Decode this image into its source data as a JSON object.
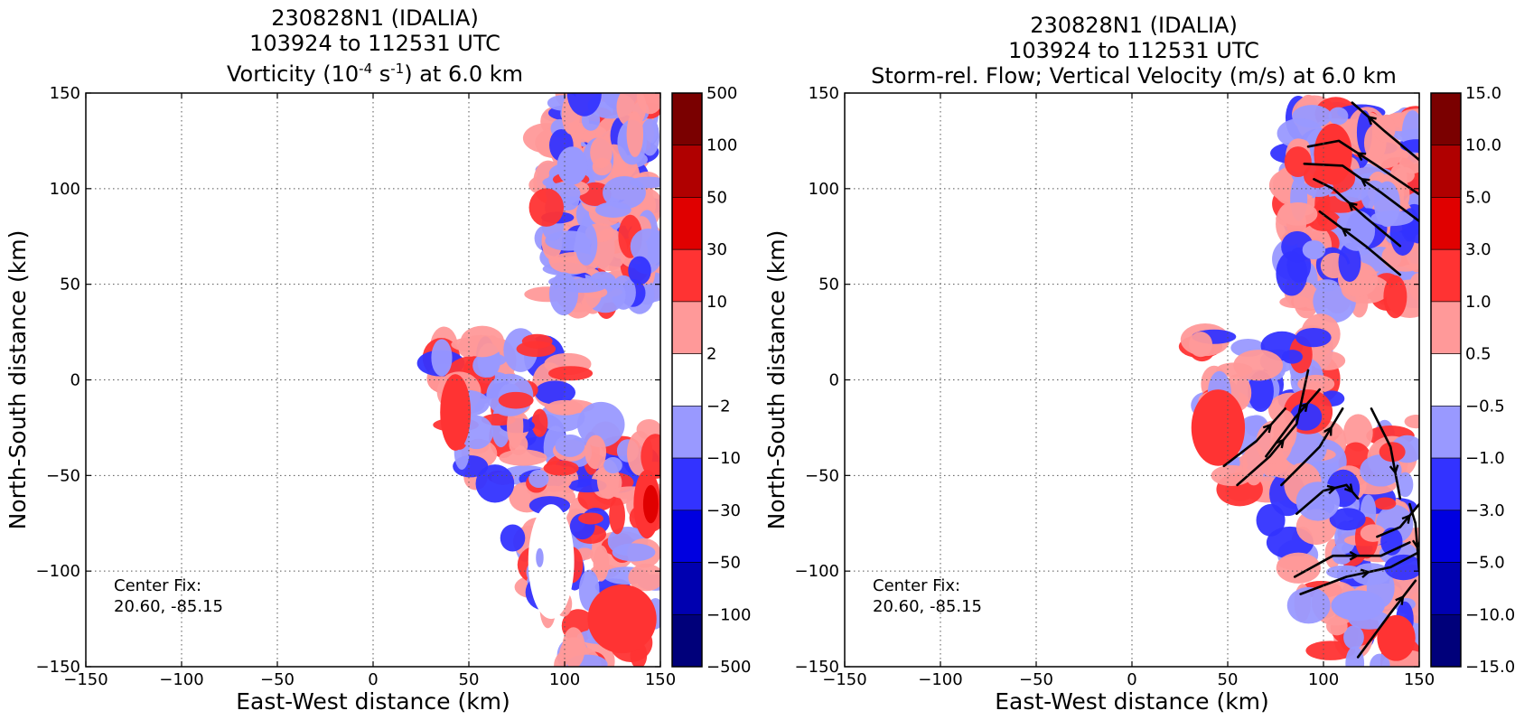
{
  "chart_data": [
    {
      "type": "heatmap",
      "title_lines": [
        "230828N1 (IDALIA)",
        "103924 to 112531 UTC"
      ],
      "title_quantity": {
        "text": "Vorticity (10",
        "sup1": "-4",
        "mid": " s",
        "sup2": "-1",
        "tail": ") at 6.0 km"
      },
      "xlabel": "East-West distance (km)",
      "ylabel": "North-South distance (km)",
      "xlim": [
        -150,
        150
      ],
      "ylim": [
        -150,
        150
      ],
      "xticks": [
        -150,
        -100,
        -50,
        0,
        50,
        100,
        150
      ],
      "yticks": [
        -150,
        -100,
        -50,
        0,
        50,
        100,
        150
      ],
      "xtick_labels": [
        "−150",
        "−100",
        "−50",
        "0",
        "50",
        "100",
        "150"
      ],
      "ytick_labels": [
        "−150",
        "−100",
        "−50",
        "0",
        "50",
        "100",
        "150"
      ],
      "grid": true,
      "colorbar": {
        "levels": [
          "500",
          "100",
          "50",
          "30",
          "10",
          "2",
          "−2",
          "−10",
          "−30",
          "−50",
          "−100",
          "−500"
        ],
        "colors": [
          "#7a0000",
          "#b00000",
          "#e00000",
          "#ff3333",
          "#ff9999",
          "#ffffff",
          "#9999ff",
          "#3333ff",
          "#0000e0",
          "#0000b0",
          "#00007a"
        ]
      },
      "center_fix": {
        "label": "Center Fix:",
        "coords": "20.60, -85.15"
      },
      "field_regions": [
        {
          "sign": "mixed",
          "x": [
            90,
            145
          ],
          "y": [
            43,
            150
          ],
          "note": "northeast echo"
        },
        {
          "sign": "mixed",
          "x": [
            35,
            150
          ],
          "y": [
            -150,
            22
          ],
          "note": "southeast echo"
        }
      ],
      "features": [
        {
          "value": 30,
          "x": 43,
          "y": -17,
          "rx": 5,
          "ry": 13
        },
        {
          "value": 10,
          "x": 43,
          "y": -17,
          "rx": 8,
          "ry": 20
        },
        {
          "value": 10,
          "x": 143,
          "y": -65,
          "rx": 7,
          "ry": 18
        },
        {
          "value": 30,
          "x": 145,
          "y": -65,
          "rx": 4,
          "ry": 10
        },
        {
          "value": -10,
          "x": 104,
          "y": 112,
          "rx": 8,
          "ry": 10
        },
        {
          "value": -2,
          "x": 93,
          "y": -95,
          "rx": 12,
          "ry": 30
        },
        {
          "value": 10,
          "x": 130,
          "y": -125,
          "rx": 18,
          "ry": 18
        },
        {
          "value": -10,
          "x": 87,
          "y": -93,
          "rx": 2,
          "ry": 5
        }
      ]
    },
    {
      "type": "heatmap",
      "title_lines": [
        "230828N1 (IDALIA)",
        "103924 to 112531 UTC",
        "Storm-rel. Flow; Vertical Velocity (m/s) at 6.0 km"
      ],
      "xlabel": "East-West distance (km)",
      "ylabel": "North-South distance (km)",
      "xlim": [
        -150,
        150
      ],
      "ylim": [
        -150,
        150
      ],
      "xticks": [
        -150,
        -100,
        -50,
        0,
        50,
        100,
        150
      ],
      "yticks": [
        -150,
        -100,
        -50,
        0,
        50,
        100,
        150
      ],
      "xtick_labels": [
        "−150",
        "−100",
        "−50",
        "0",
        "50",
        "100",
        "150"
      ],
      "ytick_labels": [
        "−150",
        "−100",
        "−50",
        "0",
        "50",
        "100",
        "150"
      ],
      "grid": true,
      "colorbar": {
        "levels": [
          "15.0",
          "10.0",
          "5.0",
          "3.0",
          "1.0",
          "0.5",
          "−0.5",
          "−1.0",
          "−3.0",
          "−5.0",
          "−10.0",
          "−15.0"
        ],
        "colors": [
          "#7a0000",
          "#b00000",
          "#e00000",
          "#ff3333",
          "#ff9999",
          "#ffffff",
          "#9999ff",
          "#3333ff",
          "#0000e0",
          "#0000b0",
          "#00007a"
        ]
      },
      "center_fix": {
        "label": "Center Fix:",
        "coords": "20.60, -85.15"
      },
      "field_regions": [
        {
          "sign": "mixed",
          "x": [
            83,
            150
          ],
          "y": [
            40,
            140
          ],
          "note": "northeast echo"
        },
        {
          "sign": "mixed",
          "x": [
            30,
            150
          ],
          "y": [
            -150,
            25
          ],
          "note": "southeast echo"
        }
      ],
      "features": [
        {
          "value": 3.0,
          "x": 45,
          "y": -22,
          "rx": 10,
          "ry": 12
        },
        {
          "value": 1.0,
          "x": 45,
          "y": -25,
          "rx": 14,
          "ry": 20
        },
        {
          "value": 1.0,
          "x": 138,
          "y": -135,
          "rx": 10,
          "ry": 12
        },
        {
          "value": 1.0,
          "x": 105,
          "y": 118,
          "rx": 10,
          "ry": 16
        },
        {
          "value": -1.0,
          "x": 95,
          "y": 68,
          "rx": 6,
          "ry": 5
        },
        {
          "value": -1.0,
          "x": 118,
          "y": -118,
          "rx": 14,
          "ry": 8
        }
      ],
      "streamlines": [
        [
          [
            150,
            115
          ],
          [
            132,
            130
          ],
          [
            115,
            145
          ]
        ],
        [
          [
            150,
            97
          ],
          [
            128,
            112
          ],
          [
            108,
            125
          ],
          [
            92,
            122
          ]
        ],
        [
          [
            150,
            83
          ],
          [
            130,
            98
          ],
          [
            110,
            112
          ],
          [
            90,
            113
          ]
        ],
        [
          [
            140,
            70
          ],
          [
            122,
            85
          ],
          [
            105,
            100
          ],
          [
            95,
            105
          ]
        ],
        [
          [
            140,
            55
          ],
          [
            122,
            70
          ],
          [
            98,
            88
          ]
        ],
        [
          [
            48,
            -45
          ],
          [
            65,
            -32
          ],
          [
            80,
            -15
          ]
        ],
        [
          [
            55,
            -55
          ],
          [
            72,
            -40
          ],
          [
            86,
            -23
          ],
          [
            92,
            5
          ]
        ],
        [
          [
            70,
            -40
          ],
          [
            85,
            -20
          ],
          [
            98,
            -5
          ]
        ],
        [
          [
            78,
            -55
          ],
          [
            98,
            -35
          ],
          [
            110,
            -15
          ]
        ],
        [
          [
            86,
            -70
          ],
          [
            100,
            -58
          ],
          [
            112,
            -55
          ]
        ],
        [
          [
            112,
            -55
          ],
          [
            118,
            -62
          ]
        ],
        [
          [
            125,
            -15
          ],
          [
            135,
            -35
          ],
          [
            140,
            -62
          ]
        ],
        [
          [
            145,
            -65
          ],
          [
            148,
            -75
          ],
          [
            150,
            -100
          ]
        ],
        [
          [
            128,
            -82
          ],
          [
            140,
            -77
          ],
          [
            150,
            -65
          ]
        ],
        [
          [
            85,
            -103
          ],
          [
            105,
            -92
          ],
          [
            130,
            -92
          ],
          [
            145,
            -85
          ]
        ],
        [
          [
            88,
            -112
          ],
          [
            112,
            -103
          ],
          [
            135,
            -98
          ],
          [
            150,
            -90
          ]
        ],
        [
          [
            118,
            -145
          ],
          [
            135,
            -122
          ],
          [
            148,
            -105
          ]
        ]
      ]
    }
  ]
}
